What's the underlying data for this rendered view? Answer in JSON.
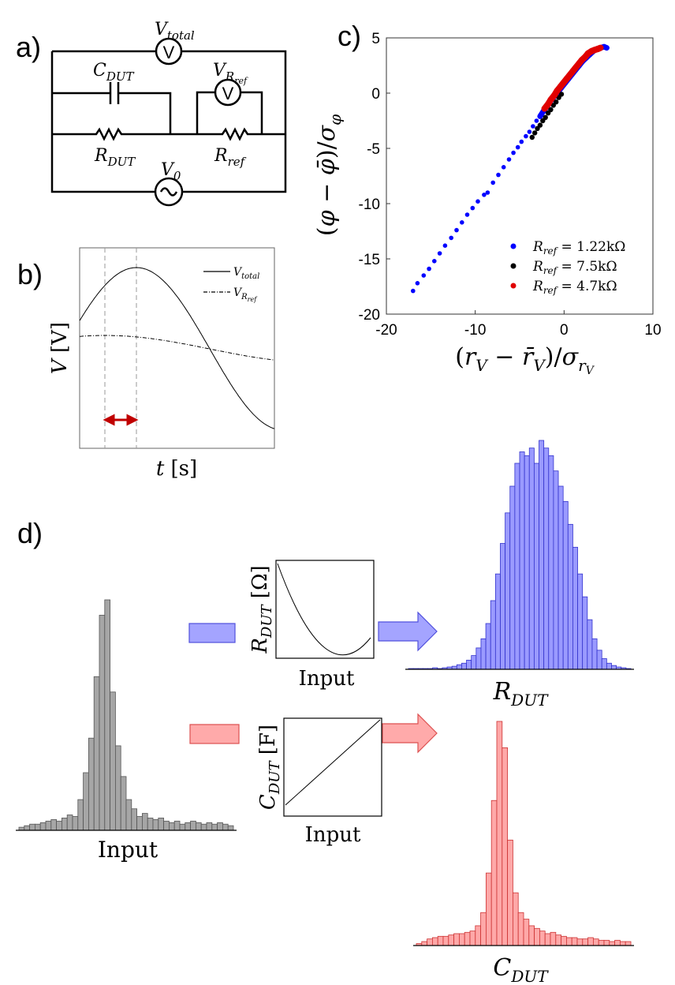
{
  "panels": {
    "a": "a)",
    "b": "b)",
    "c": "c)",
    "d": "d)"
  },
  "circuit": {
    "v_total": {
      "base": "V",
      "sub": "total"
    },
    "v_rref": {
      "base": "V",
      "sub": "R",
      "subsub": "ref"
    },
    "c_dut": {
      "base": "C",
      "sub": "DUT"
    },
    "r_dut": {
      "base": "R",
      "sub": "DUT"
    },
    "r_ref": {
      "base": "R",
      "sub": "ref"
    },
    "v0": {
      "base": "V",
      "sub": "0"
    },
    "meter_symbol": "V",
    "source_symbol": "~"
  },
  "waveform": {
    "xlabel": {
      "var": "t",
      "unit": "[s]"
    },
    "ylabel": {
      "var": "V",
      "unit": "[V]"
    },
    "legend": [
      {
        "base": "V",
        "sub": "total",
        "style": "solid"
      },
      {
        "base": "V",
        "sub": "R",
        "subsub": "ref",
        "style": "dashdot"
      }
    ],
    "arrow_color": "#c00000"
  },
  "chart_data": {
    "type": "scatter",
    "xlabel": "(r_V − r̄_V)/σ_rV",
    "ylabel": "(φ − φ̄)/σ_φ",
    "xlim": [
      -20,
      10
    ],
    "ylim": [
      -20,
      5
    ],
    "xticks": [
      "-20",
      "-10",
      "0",
      "10"
    ],
    "yticks": [
      "5",
      "0",
      "-5",
      "-10",
      "-15",
      "-20"
    ],
    "legend_position": "bottom-right",
    "series": [
      {
        "name": "R_ref = 1.22kΩ",
        "label_lhs": "R",
        "label_sub": "ref",
        "label_rhs": " = 1.22kΩ",
        "color": "#0000ff",
        "points": [
          [
            -17.0,
            -17.9
          ],
          [
            -16.5,
            -17.2
          ],
          [
            -15.8,
            -16.5
          ],
          [
            -15.2,
            -15.9
          ],
          [
            -14.6,
            -15.2
          ],
          [
            -14.0,
            -14.5
          ],
          [
            -13.4,
            -13.8
          ],
          [
            -12.7,
            -13.1
          ],
          [
            -12.1,
            -12.4
          ],
          [
            -11.5,
            -11.7
          ],
          [
            -10.9,
            -11.0
          ],
          [
            -10.3,
            -10.4
          ],
          [
            -9.7,
            -9.8
          ],
          [
            -9.0,
            -9.2
          ],
          [
            -8.6,
            -9.0
          ],
          [
            -8.0,
            -8.1
          ],
          [
            -7.4,
            -7.4
          ],
          [
            -6.8,
            -6.7
          ],
          [
            -6.2,
            -6.0
          ],
          [
            -5.7,
            -5.4
          ],
          [
            -5.2,
            -4.9
          ],
          [
            -4.8,
            -4.4
          ],
          [
            -4.3,
            -3.9
          ],
          [
            -3.9,
            -3.5
          ],
          [
            -3.5,
            -3.0
          ],
          [
            -3.1,
            -2.5
          ],
          [
            -2.7,
            -2.1
          ],
          [
            -2.3,
            -1.6
          ],
          [
            -1.9,
            -1.2
          ],
          [
            -1.5,
            -0.7
          ],
          [
            -1.1,
            -0.3
          ],
          [
            -0.7,
            0.1
          ],
          [
            -0.3,
            0.5
          ],
          [
            0.1,
            0.9
          ],
          [
            0.5,
            1.3
          ],
          [
            0.9,
            1.7
          ],
          [
            1.3,
            2.1
          ],
          [
            1.7,
            2.5
          ],
          [
            2.1,
            2.9
          ],
          [
            2.5,
            3.2
          ],
          [
            2.9,
            3.5
          ],
          [
            3.3,
            3.8
          ],
          [
            3.7,
            4.0
          ],
          [
            4.1,
            4.1
          ],
          [
            4.5,
            4.2
          ],
          [
            4.8,
            4.1
          ]
        ]
      },
      {
        "name": "R_ref = 7.5kΩ",
        "label_lhs": "R",
        "label_sub": "ref",
        "label_rhs": " = 7.5kΩ",
        "color": "#000000",
        "points": [
          [
            -3.6,
            -4.0
          ],
          [
            -3.3,
            -3.6
          ],
          [
            -3.0,
            -3.2
          ],
          [
            -2.7,
            -2.9
          ],
          [
            -2.4,
            -2.5
          ],
          [
            -2.1,
            -2.2
          ],
          [
            -1.8,
            -1.8
          ],
          [
            -1.5,
            -1.5
          ],
          [
            -1.2,
            -1.1
          ],
          [
            -0.9,
            -0.8
          ],
          [
            -0.6,
            -0.4
          ],
          [
            -0.3,
            -0.1
          ]
        ]
      },
      {
        "name": "R_ref = 4.7kΩ",
        "label_lhs": "R",
        "label_sub": "ref",
        "label_rhs": " = 4.7kΩ",
        "color": "#e00000",
        "points": [
          [
            -2.2,
            -1.4
          ],
          [
            -1.8,
            -1.0
          ],
          [
            -1.5,
            -0.6
          ],
          [
            -1.1,
            -0.2
          ],
          [
            -0.8,
            0.2
          ],
          [
            -0.4,
            0.6
          ],
          [
            -0.1,
            0.9
          ],
          [
            0.3,
            1.3
          ],
          [
            0.6,
            1.6
          ],
          [
            1.0,
            2.0
          ],
          [
            1.3,
            2.3
          ],
          [
            1.7,
            2.7
          ],
          [
            2.0,
            3.0
          ],
          [
            2.4,
            3.3
          ],
          [
            2.7,
            3.6
          ],
          [
            3.1,
            3.8
          ],
          [
            3.4,
            3.9
          ],
          [
            3.8,
            4.0
          ],
          [
            4.1,
            4.1
          ]
        ]
      }
    ]
  },
  "pipeline": {
    "input_label": "Input",
    "r_axis": {
      "base": "R",
      "sub": "DUT",
      "unit": "[Ω]"
    },
    "c_axis": {
      "base": "C",
      "sub": "DUT",
      "unit": "[F]"
    },
    "r_output": {
      "base": "R",
      "sub": "DUT"
    },
    "c_output": {
      "base": "C",
      "sub": "DUT"
    },
    "colors": {
      "input": "#a6a6a6",
      "r": "#9a9aff",
      "c": "#ffa8a8",
      "r_edge": "#3333cc",
      "c_edge": "#cc3333"
    },
    "input_hist": [
      4,
      6,
      8,
      8,
      10,
      12,
      14,
      12,
      16,
      20,
      18,
      40,
      75,
      120,
      200,
      280,
      300,
      180,
      110,
      70,
      40,
      28,
      18,
      22,
      16,
      14,
      16,
      12,
      10,
      12,
      8,
      10,
      12,
      10,
      8,
      10,
      8,
      10,
      8,
      6
    ],
    "r_hist": [
      1,
      1,
      1,
      1,
      1,
      2,
      1,
      2,
      3,
      4,
      6,
      8,
      12,
      18,
      28,
      40,
      60,
      90,
      125,
      165,
      205,
      240,
      270,
      285,
      280,
      290,
      270,
      300,
      290,
      280,
      260,
      240,
      220,
      190,
      160,
      125,
      95,
      65,
      40,
      25,
      14,
      8,
      5,
      3,
      2,
      1
    ],
    "c_hist": [
      3,
      6,
      10,
      12,
      14,
      14,
      16,
      18,
      18,
      20,
      22,
      30,
      50,
      110,
      220,
      340,
      300,
      160,
      80,
      50,
      40,
      30,
      26,
      22,
      18,
      20,
      16,
      14,
      12,
      12,
      10,
      10,
      12,
      10,
      8,
      8,
      6,
      8,
      6,
      6
    ]
  }
}
